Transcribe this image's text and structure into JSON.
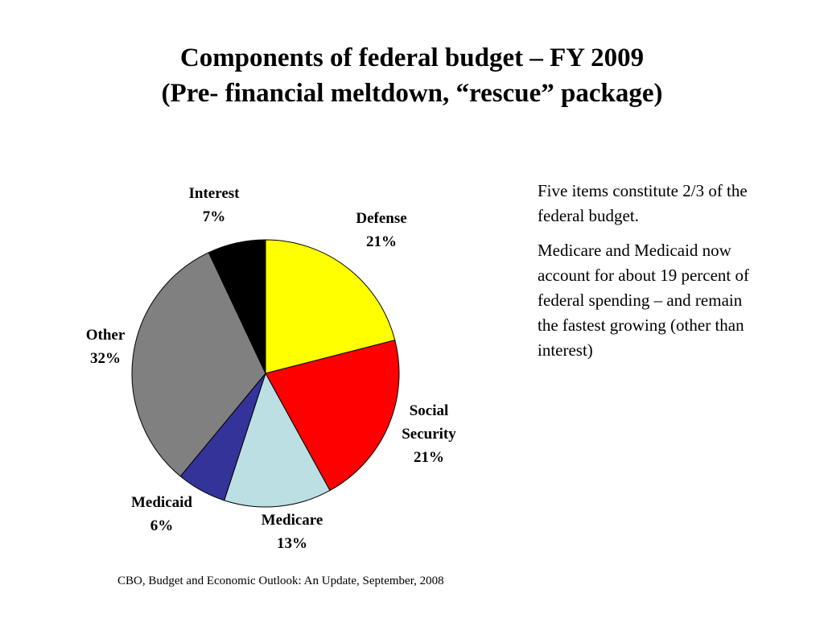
{
  "title": {
    "line1": "Components of federal budget – FY 2009",
    "line2": "(Pre- financial meltdown, “rescue” package)"
  },
  "chart_data": {
    "type": "pie",
    "slices": [
      {
        "label": [
          "Defense",
          "21%"
        ],
        "value": 21,
        "color": "#FFFF00"
      },
      {
        "label": [
          "Social",
          "Security",
          "21%"
        ],
        "value": 21,
        "color": "#FF0000"
      },
      {
        "label": [
          "Medicare",
          "13%"
        ],
        "value": 13,
        "color": "#BBDFE3"
      },
      {
        "label": [
          "Medicaid",
          "6%"
        ],
        "value": 6,
        "color": "#333399"
      },
      {
        "label": [
          "Other",
          "32%"
        ],
        "value": 32,
        "color": "#808080"
      },
      {
        "label": [
          "Interest",
          "7%"
        ],
        "value": 7,
        "color": "#000000"
      }
    ]
  },
  "side_text": {
    "paragraph1": "Five items constitute 2/3 of the federal budget.",
    "paragraph2": "Medicare and Medicaid now account for about 19 percent of federal spending – and remain the fastest growing (other than interest)"
  },
  "source": "CBO, Budget and Economic Outlook:  An Update, September, 2008"
}
